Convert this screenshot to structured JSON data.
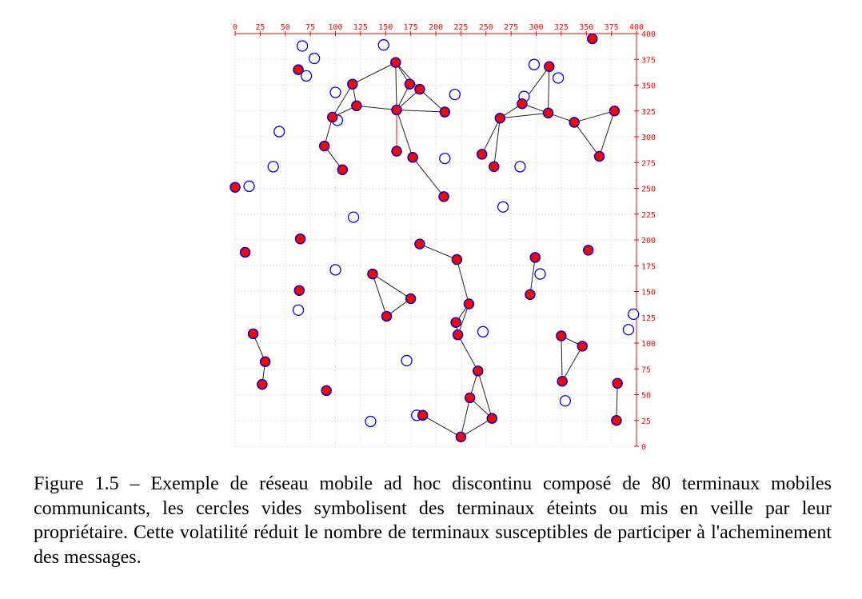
{
  "chart_data": {
    "type": "scatter",
    "title": "",
    "xlabel": "",
    "ylabel": "",
    "xlim": [
      0,
      400
    ],
    "ylim": [
      0,
      400
    ],
    "grid": true,
    "x_ticks": [
      0,
      25,
      50,
      75,
      100,
      125,
      150,
      175,
      200,
      225,
      250,
      275,
      300,
      325,
      350,
      375,
      400
    ],
    "y_ticks": [
      0,
      25,
      50,
      75,
      100,
      125,
      150,
      175,
      200,
      225,
      250,
      275,
      300,
      325,
      350,
      375,
      400
    ],
    "colors": {
      "active_fill": "#ff0000",
      "node_outline": "#0000ff",
      "axis": "#ff0000",
      "link": "#222222"
    },
    "active_nodes": [
      [
        356,
        395
      ],
      [
        63,
        365
      ],
      [
        160,
        372
      ],
      [
        174,
        351
      ],
      [
        184,
        346
      ],
      [
        117,
        351
      ],
      [
        121,
        330
      ],
      [
        161,
        326
      ],
      [
        209,
        324
      ],
      [
        97,
        319
      ],
      [
        89,
        291
      ],
      [
        107,
        268
      ],
      [
        161,
        286
      ],
      [
        177,
        280
      ],
      [
        208,
        242
      ],
      [
        313,
        368
      ],
      [
        286,
        332
      ],
      [
        264,
        318
      ],
      [
        312,
        323
      ],
      [
        338,
        314
      ],
      [
        378,
        325
      ],
      [
        363,
        281
      ],
      [
        246,
        283
      ],
      [
        258,
        271
      ],
      [
        0,
        251
      ],
      [
        65,
        201
      ],
      [
        10,
        188
      ],
      [
        64,
        151
      ],
      [
        184,
        196
      ],
      [
        221,
        181
      ],
      [
        137,
        167
      ],
      [
        175,
        143
      ],
      [
        151,
        126
      ],
      [
        233,
        138
      ],
      [
        220,
        120
      ],
      [
        222,
        108
      ],
      [
        299,
        183
      ],
      [
        352,
        190
      ],
      [
        294,
        147
      ],
      [
        325,
        107
      ],
      [
        346,
        97
      ],
      [
        326,
        63
      ],
      [
        18,
        109
      ],
      [
        30,
        82
      ],
      [
        27,
        60
      ],
      [
        91,
        54
      ],
      [
        242,
        73
      ],
      [
        234,
        47
      ],
      [
        256,
        27
      ],
      [
        187,
        30
      ],
      [
        225,
        9
      ],
      [
        381,
        61
      ],
      [
        380,
        25
      ]
    ],
    "inactive_nodes": [
      [
        67,
        388
      ],
      [
        79,
        376
      ],
      [
        148,
        389
      ],
      [
        71,
        359
      ],
      [
        100,
        343
      ],
      [
        102,
        316
      ],
      [
        44,
        305
      ],
      [
        38,
        271
      ],
      [
        14,
        252
      ],
      [
        118,
        222
      ],
      [
        219,
        341
      ],
      [
        298,
        370
      ],
      [
        322,
        357
      ],
      [
        288,
        339
      ],
      [
        209,
        279
      ],
      [
        284,
        271
      ],
      [
        267,
        232
      ],
      [
        100,
        171
      ],
      [
        63,
        132
      ],
      [
        304,
        167
      ],
      [
        397,
        128
      ],
      [
        392,
        113
      ],
      [
        247,
        111
      ],
      [
        171,
        83
      ],
      [
        329,
        44
      ],
      [
        135,
        24
      ],
      [
        181,
        30
      ]
    ],
    "links": [
      [
        2,
        3
      ],
      [
        2,
        4
      ],
      [
        2,
        5
      ],
      [
        2,
        7
      ],
      [
        3,
        4
      ],
      [
        3,
        7
      ],
      [
        4,
        7
      ],
      [
        4,
        8
      ],
      [
        5,
        6
      ],
      [
        5,
        9
      ],
      [
        6,
        7
      ],
      [
        6,
        9
      ],
      [
        7,
        8
      ],
      [
        7,
        13
      ],
      [
        9,
        10
      ],
      [
        10,
        11
      ],
      [
        13,
        14
      ],
      [
        15,
        16
      ],
      [
        15,
        18
      ],
      [
        16,
        17
      ],
      [
        16,
        18
      ],
      [
        17,
        18
      ],
      [
        17,
        23
      ],
      [
        17,
        22
      ],
      [
        18,
        19
      ],
      [
        19,
        20
      ],
      [
        19,
        21
      ],
      [
        20,
        21
      ],
      [
        28,
        29
      ],
      [
        29,
        33
      ],
      [
        30,
        31
      ],
      [
        30,
        32
      ],
      [
        31,
        32
      ],
      [
        33,
        34
      ],
      [
        33,
        35
      ],
      [
        34,
        35
      ],
      [
        35,
        46
      ],
      [
        36,
        38
      ],
      [
        39,
        40
      ],
      [
        39,
        41
      ],
      [
        40,
        41
      ],
      [
        42,
        43
      ],
      [
        43,
        44
      ],
      [
        46,
        47
      ],
      [
        46,
        48
      ],
      [
        47,
        48
      ],
      [
        47,
        50
      ],
      [
        48,
        50
      ],
      [
        49,
        50
      ],
      [
        51,
        52
      ]
    ],
    "red_links": [
      [
        7,
        12
      ]
    ]
  },
  "caption": "Figure 1.5 – Exemple de réseau mobile ad hoc discontinu composé de 80 terminaux mobiles communicants, les cercles vides symbolisent des terminaux éteints ou mis en veille par leur propriétaire. Cette volatilité réduit le nombre de terminaux susceptibles de participer à l'acheminement des messages."
}
